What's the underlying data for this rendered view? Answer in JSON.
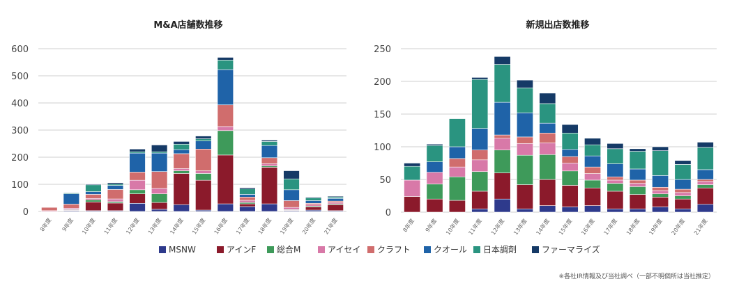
{
  "colors": {
    "MSNW": "#2e3a8c",
    "アインF": "#8b1a2b",
    "総合M": "#3e9a5a",
    "アイセイ": "#d879a8",
    "クラフト": "#d06d6d",
    "クオール": "#1f63a8",
    "日本調剤": "#2a9480",
    "ファーマライズ": "#153a66"
  },
  "legend": [
    "MSNW",
    "アインF",
    "総合M",
    "アイセイ",
    "クラフト",
    "クオール",
    "日本調剤",
    "ファーマライズ"
  ],
  "note": "※各社IR情報及び当社調べ（一部不明個所は当社推定）",
  "chart_data": [
    {
      "type": "bar",
      "stacked": true,
      "title": "M&A店舗数推移",
      "categories": [
        "8年度",
        "9年度",
        "10年度",
        "11年度",
        "12年度",
        "13年度",
        "14年度",
        "15年度",
        "16年度",
        "17年度",
        "18年度",
        "19年度",
        "20年度",
        "21年度"
      ],
      "ylim": [
        0,
        600
      ],
      "yticks": [
        0,
        100,
        200,
        300,
        400,
        500,
        600
      ],
      "grid": true,
      "series": [
        {
          "name": "MSNW",
          "values": [
            0,
            3,
            3,
            3,
            30,
            8,
            25,
            5,
            28,
            18,
            28,
            3,
            5,
            3
          ]
        },
        {
          "name": "アインF",
          "values": [
            0,
            2,
            32,
            28,
            35,
            25,
            115,
            110,
            180,
            10,
            135,
            2,
            12,
            22
          ]
        },
        {
          "name": "総合M",
          "values": [
            0,
            2,
            8,
            5,
            15,
            32,
            10,
            25,
            90,
            5,
            5,
            2,
            3,
            3
          ]
        },
        {
          "name": "アイセイ",
          "values": [
            3,
            5,
            5,
            10,
            35,
            20,
            8,
            10,
            15,
            8,
            8,
            8,
            5,
            5
          ]
        },
        {
          "name": "クラフト",
          "values": [
            12,
            15,
            15,
            35,
            30,
            62,
            55,
            80,
            80,
            12,
            22,
            25,
            5,
            5
          ]
        },
        {
          "name": "クオール",
          "values": [
            0,
            38,
            10,
            15,
            70,
            68,
            15,
            30,
            130,
            10,
            45,
            40,
            10,
            10
          ]
        },
        {
          "name": "日本調剤",
          "values": [
            0,
            3,
            25,
            5,
            5,
            5,
            20,
            8,
            35,
            20,
            15,
            40,
            10,
            5
          ]
        },
        {
          "name": "ファーマライズ",
          "values": [
            0,
            2,
            3,
            5,
            10,
            25,
            10,
            10,
            10,
            5,
            5,
            30,
            3,
            3
          ]
        }
      ]
    },
    {
      "type": "bar",
      "stacked": true,
      "title": "新規出店数推移",
      "categories": [
        "8年度",
        "9年度",
        "10年度",
        "11年度",
        "12年度",
        "13年度",
        "14年度",
        "15年度",
        "16年度",
        "17年度",
        "18年度",
        "19年度",
        "20年度",
        "21年度"
      ],
      "ylim": [
        0,
        250
      ],
      "yticks": [
        0,
        50,
        100,
        150,
        200,
        250
      ],
      "grid": true,
      "series": [
        {
          "name": "MSNW",
          "values": [
            0,
            0,
            0,
            5,
            20,
            5,
            10,
            8,
            10,
            5,
            5,
            8,
            5,
            12
          ]
        },
        {
          "name": "アインF",
          "values": [
            24,
            20,
            18,
            27,
            40,
            37,
            40,
            33,
            27,
            27,
            22,
            15,
            15,
            25
          ]
        },
        {
          "name": "総合M",
          "values": [
            0,
            23,
            36,
            30,
            35,
            45,
            38,
            22,
            12,
            12,
            12,
            5,
            5,
            5
          ]
        },
        {
          "name": "アイセイ",
          "values": [
            25,
            18,
            15,
            18,
            18,
            18,
            18,
            12,
            10,
            5,
            5,
            5,
            5,
            5
          ]
        },
        {
          "name": "クラフト",
          "values": [
            0,
            0,
            13,
            15,
            5,
            10,
            15,
            10,
            10,
            5,
            5,
            5,
            5,
            3
          ]
        },
        {
          "name": "クオール",
          "values": [
            0,
            16,
            18,
            33,
            50,
            37,
            15,
            11,
            17,
            20,
            17,
            18,
            15,
            15
          ]
        },
        {
          "name": "日本調剤",
          "values": [
            21,
            25,
            43,
            75,
            58,
            38,
            30,
            25,
            17,
            23,
            27,
            38,
            23,
            34
          ]
        },
        {
          "name": "ファーマライズ",
          "values": [
            5,
            2,
            0,
            3,
            12,
            12,
            16,
            13,
            10,
            8,
            4,
            6,
            6,
            8
          ]
        }
      ]
    }
  ]
}
